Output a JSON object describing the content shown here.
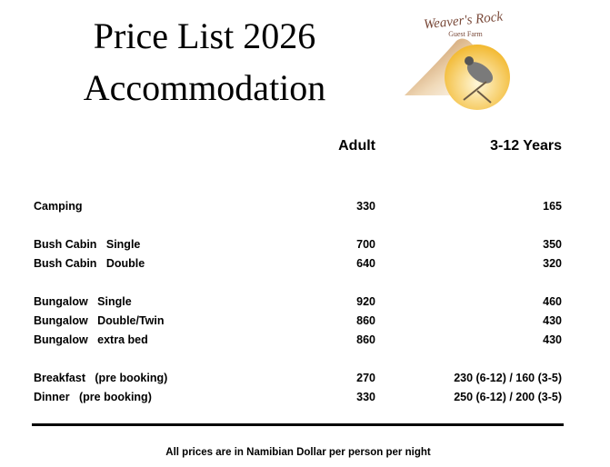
{
  "title": {
    "line1": "Price List 2026",
    "line2": "Accommodation"
  },
  "logo": {
    "text": "Weaver's Rock",
    "subtext": "Guest Farm",
    "icon": "bird-logo"
  },
  "columns": {
    "adult": "Adult",
    "child": "3-12 Years"
  },
  "rows": [
    {
      "label": "Camping",
      "adult": "330",
      "child": "165"
    },
    {
      "label": "Bush Cabin   Single",
      "adult": "700",
      "child": "350"
    },
    {
      "label": "Bush Cabin   Double",
      "adult": "640",
      "child": "320"
    },
    {
      "label": "Bungalow   Single",
      "adult": "920",
      "child": "460"
    },
    {
      "label": "Bungalow   Double/Twin",
      "adult": "860",
      "child": "430"
    },
    {
      "label": "Bungalow   extra bed",
      "adult": "860",
      "child": "430"
    },
    {
      "label": "Breakfast   (pre booking)",
      "adult": "270",
      "child": "230 (6-12) / 160 (3-5)"
    },
    {
      "label": "Dinner   (pre booking)",
      "adult": "330",
      "child": "250 (6-12) / 200 (3-5)"
    }
  ],
  "footer": "All prices are in Namibian Dollar per person per night"
}
